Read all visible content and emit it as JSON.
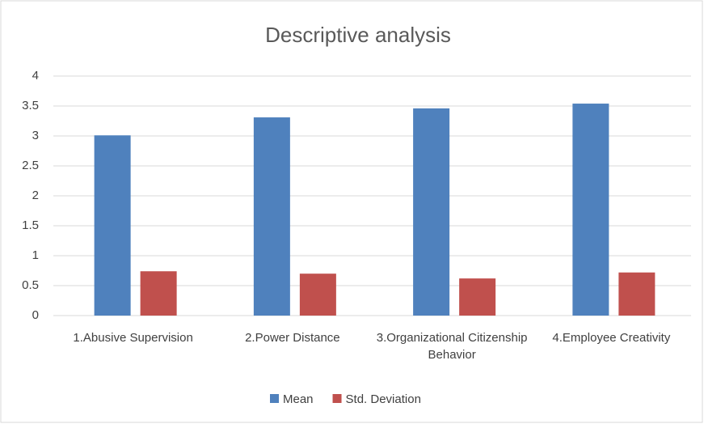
{
  "chart_data": {
    "type": "bar",
    "title": "Descriptive analysis",
    "categories": [
      "1.Abusive Supervision",
      "2.Power Distance",
      "3.Organizational Citizenship Behavior",
      "4.Employee Creativity"
    ],
    "series": [
      {
        "name": "Mean",
        "color": "#4f81bd",
        "values": [
          3.01,
          3.31,
          3.46,
          3.54
        ]
      },
      {
        "name": "Std. Deviation",
        "color": "#c0504d",
        "values": [
          0.74,
          0.7,
          0.62,
          0.72
        ]
      }
    ],
    "ylim": [
      0,
      4
    ],
    "yticks": [
      0,
      0.5,
      1,
      1.5,
      2,
      2.5,
      3,
      3.5,
      4
    ],
    "grid": true,
    "legend": "bottom"
  }
}
